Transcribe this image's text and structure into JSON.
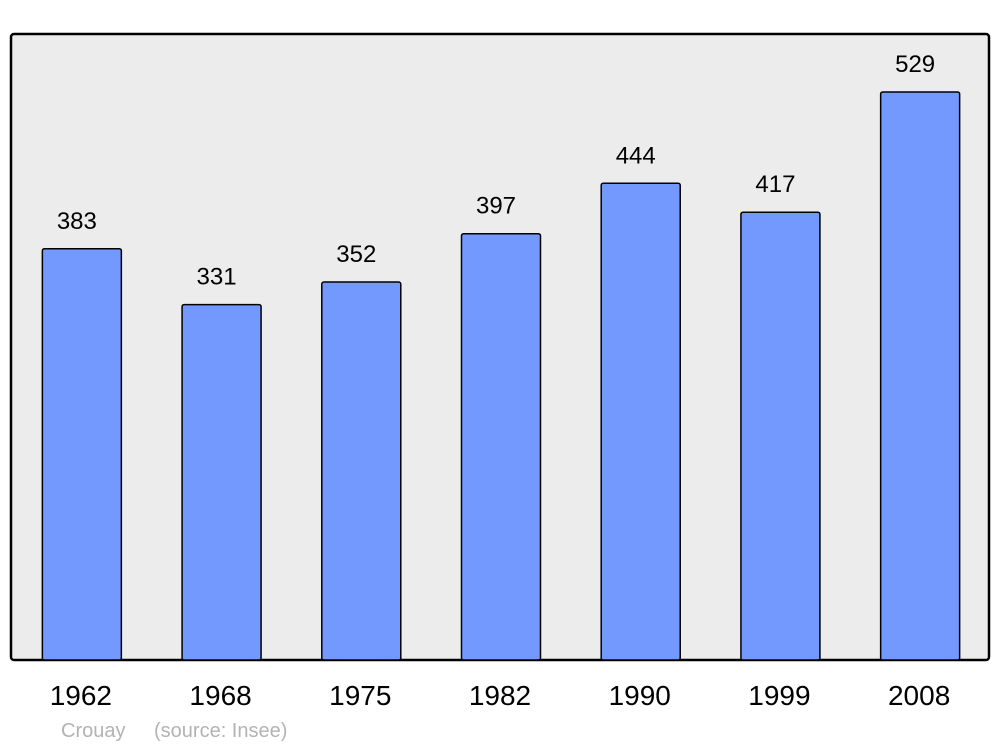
{
  "chart_data": {
    "type": "bar",
    "categories": [
      "1962",
      "1968",
      "1975",
      "1982",
      "1990",
      "1999",
      "2008"
    ],
    "values": [
      383,
      331,
      352,
      397,
      444,
      417,
      529
    ],
    "title": "",
    "xlabel": "",
    "ylabel": "",
    "ylim": [
      0,
      583
    ],
    "grid": false,
    "data_labels": true,
    "colors": {
      "bar": "#7399ff",
      "plot_background": "#ececec",
      "border": "#000000",
      "footer_text": "#b3b3b3"
    }
  },
  "footer": {
    "place": "Crouay",
    "source": "(source: Insee)"
  }
}
